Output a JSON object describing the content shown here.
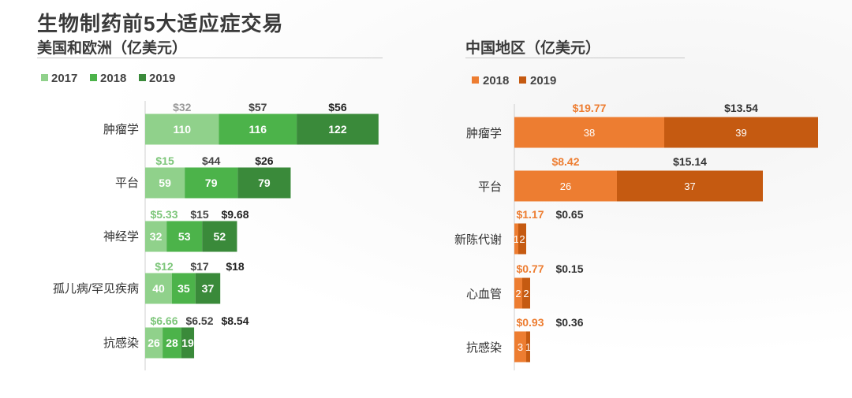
{
  "title": "生物制药前5大适应症交易",
  "colors": {
    "c2017": "#90d18b",
    "c2018": "#4cb34a",
    "c2019": "#3a8a3a",
    "cn2018": "#ed7d31",
    "cn2019": "#c55a11",
    "ann2017": "#7dc67a",
    "ann2018": "#444444",
    "ann2019": "#222222",
    "annPrev": "#9a9a9a",
    "annCn2018": "#ed7d31",
    "annCn2019": "#333333"
  },
  "chart_data": [
    {
      "type": "bar",
      "orientation": "horizontal-stacked",
      "title": "美国和欧洲（亿美元）",
      "categories": [
        "肿瘤学",
        "平台",
        "神经学",
        "孤儿病/罕见疾病",
        "抗感染"
      ],
      "series": [
        {
          "name": "2017",
          "values": [
            110,
            59,
            32,
            40,
            26
          ]
        },
        {
          "name": "2018",
          "values": [
            116,
            79,
            53,
            35,
            28
          ]
        },
        {
          "name": "2019",
          "values": [
            122,
            79,
            52,
            37,
            19
          ]
        }
      ],
      "annotations": [
        [
          "$32",
          "$57",
          "$56"
        ],
        [
          "$15",
          "$44",
          "$26"
        ],
        [
          "$5.33",
          "$15",
          "$9.68"
        ],
        [
          "$12",
          "$17",
          "$18"
        ],
        [
          "$6.66",
          "$6.52",
          "$8.54"
        ]
      ],
      "legend": "top-left"
    },
    {
      "type": "bar",
      "orientation": "horizontal-stacked",
      "title": "中国地区（亿美元）",
      "categories": [
        "肿瘤学",
        "平台",
        "新陈代谢",
        "心血管",
        "抗感染"
      ],
      "series": [
        {
          "name": "2018",
          "values": [
            38,
            26,
            1,
            2,
            3
          ]
        },
        {
          "name": "2019",
          "values": [
            39,
            37,
            2,
            2,
            1
          ]
        }
      ],
      "labels": [
        [
          "38",
          "39"
        ],
        [
          "26",
          "37"
        ],
        [
          "1",
          "2"
        ],
        [
          "2",
          "2"
        ],
        [
          "3",
          "1"
        ]
      ],
      "annotations": [
        [
          "$19.77",
          "$13.54"
        ],
        [
          "$8.42",
          "$15.14"
        ],
        [
          "$1.17",
          "$0.65"
        ],
        [
          "$0.77",
          "$0.15"
        ],
        [
          "$0.93",
          "$0.36"
        ]
      ],
      "legend": "top-left"
    }
  ]
}
